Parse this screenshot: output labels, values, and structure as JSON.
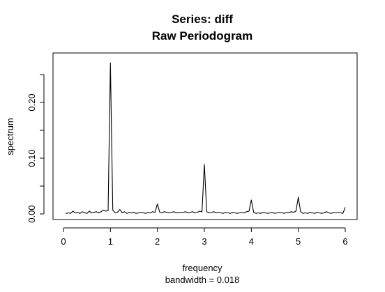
{
  "chart_data": {
    "type": "line",
    "title": "Series: diff",
    "subtitle": "Raw Periodogram",
    "xlabel": "frequency",
    "xlabel_note": "bandwidth = 0.018",
    "ylabel": "spectrum",
    "xlim": [
      0,
      6
    ],
    "ylim": [
      0,
      0.27
    ],
    "x_ticks": [
      "0",
      "1",
      "2",
      "3",
      "4",
      "5",
      "6"
    ],
    "y_ticks": [
      "0.00",
      "0.10",
      "0.20"
    ],
    "y_tick_values": [
      0,
      0.1,
      0.2
    ],
    "x_tick_values": [
      0,
      1,
      2,
      3,
      4,
      5,
      6
    ],
    "series": [
      {
        "x": [
          0.05,
          0.1,
          0.15,
          0.2,
          0.25,
          0.3,
          0.35,
          0.4,
          0.45,
          0.5,
          0.55,
          0.6,
          0.65,
          0.7,
          0.75,
          0.8,
          0.85,
          0.9,
          0.95,
          1.0,
          1.05,
          1.1,
          1.15,
          1.2,
          1.25,
          1.3,
          1.35,
          1.4,
          1.45,
          1.5,
          1.55,
          1.6,
          1.65,
          1.7,
          1.75,
          1.8,
          1.85,
          1.9,
          1.95,
          2.0,
          2.05,
          2.1,
          2.15,
          2.2,
          2.25,
          2.3,
          2.35,
          2.4,
          2.45,
          2.5,
          2.55,
          2.6,
          2.65,
          2.7,
          2.75,
          2.8,
          2.85,
          2.9,
          2.95,
          3.0,
          3.05,
          3.1,
          3.15,
          3.2,
          3.25,
          3.3,
          3.35,
          3.4,
          3.45,
          3.5,
          3.55,
          3.6,
          3.65,
          3.7,
          3.75,
          3.8,
          3.85,
          3.9,
          3.95,
          4.0,
          4.05,
          4.1,
          4.15,
          4.2,
          4.25,
          4.3,
          4.35,
          4.4,
          4.45,
          4.5,
          4.55,
          4.6,
          4.65,
          4.7,
          4.75,
          4.8,
          4.85,
          4.9,
          4.95,
          5.0,
          5.05,
          5.1,
          5.15,
          5.2,
          5.25,
          5.3,
          5.35,
          5.4,
          5.45,
          5.5,
          5.55,
          5.6,
          5.65,
          5.7,
          5.75,
          5.8,
          5.85,
          5.9,
          5.95,
          6.0
        ],
        "values": [
          0.0005,
          0.002,
          0.001,
          0.005,
          0.002,
          0.003,
          0.001,
          0.004,
          0.002,
          0.001,
          0.005,
          0.002,
          0.003,
          0.004,
          0.002,
          0.004,
          0.007,
          0.005,
          0.006,
          0.271,
          0.007,
          0.002,
          0.003,
          0.008,
          0.002,
          0.004,
          0.001,
          0.003,
          0.002,
          0.003,
          0.001,
          0.002,
          0.003,
          0.002,
          0.001,
          0.003,
          0.002,
          0.004,
          0.003,
          0.018,
          0.003,
          0.002,
          0.004,
          0.003,
          0.002,
          0.003,
          0.004,
          0.002,
          0.003,
          0.002,
          0.003,
          0.004,
          0.002,
          0.003,
          0.004,
          0.002,
          0.003,
          0.005,
          0.004,
          0.089,
          0.004,
          0.002,
          0.003,
          0.004,
          0.002,
          0.003,
          0.002,
          0.001,
          0.003,
          0.002,
          0.001,
          0.003,
          0.002,
          0.001,
          0.002,
          0.003,
          0.002,
          0.004,
          0.005,
          0.025,
          0.003,
          0.001,
          0.002,
          0.001,
          0.003,
          0.002,
          0.001,
          0.002,
          0.003,
          0.001,
          0.002,
          0.003,
          0.002,
          0.001,
          0.003,
          0.002,
          0.004,
          0.003,
          0.005,
          0.03,
          0.004,
          0.001,
          0.002,
          0.001,
          0.003,
          0.002,
          0.001,
          0.003,
          0.002,
          0.001,
          0.002,
          0.004,
          0.002,
          0.001,
          0.003,
          0.002,
          0.003,
          0.002,
          0.001,
          0.012
        ]
      }
    ]
  }
}
